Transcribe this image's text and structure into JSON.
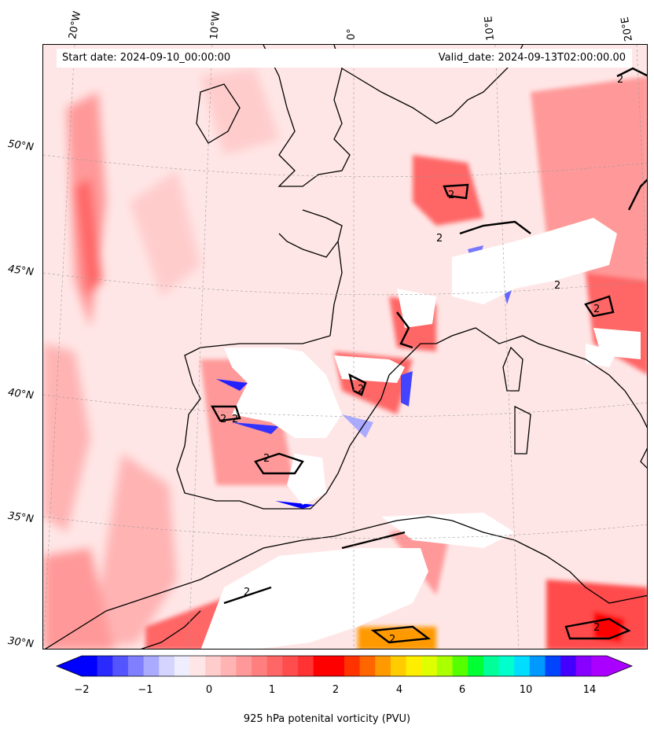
{
  "map": {
    "start_date": "Start date: 2024-09-10_00:00:00",
    "valid_date": "Valid_date: 2024-09-13T02:00:00.00",
    "lon_labels": [
      "20°W",
      "10°W",
      "0°",
      "10°E",
      "20°E"
    ],
    "lat_labels": [
      "50°N",
      "45°N",
      "40°N",
      "35°N",
      "30°N"
    ],
    "contour_labels": [
      "2",
      "2",
      "2",
      "2",
      "2",
      "2",
      "2",
      "2",
      "2",
      "2",
      "2",
      "2"
    ],
    "region": "Western Europe, Iberia, North Africa, Western Mediterranean"
  },
  "colorbar": {
    "label": "925 hPa potenital vorticity (PVU)",
    "ticks": [
      "−2",
      "−1",
      "0",
      "1",
      "2",
      "4",
      "6",
      "10",
      "14"
    ],
    "colors": [
      "#0000ff",
      "#2a2aff",
      "#5555ff",
      "#7f7fff",
      "#aaaaff",
      "#d4d4ff",
      "#eeeeff",
      "#ffe6e6",
      "#ffcccc",
      "#ffb3b3",
      "#ff9999",
      "#ff7f7f",
      "#ff6666",
      "#ff4c4c",
      "#ff3333",
      "#ff0000",
      "#ff0000",
      "#ff3300",
      "#ff6600",
      "#ff9900",
      "#ffcc00",
      "#ffee00",
      "#ddff00",
      "#aaff00",
      "#55ff00",
      "#00ff33",
      "#00ff99",
      "#00ffcc",
      "#00ddff",
      "#0099ff",
      "#0044ff",
      "#4400ff",
      "#8800ff",
      "#aa00ff"
    ]
  }
}
